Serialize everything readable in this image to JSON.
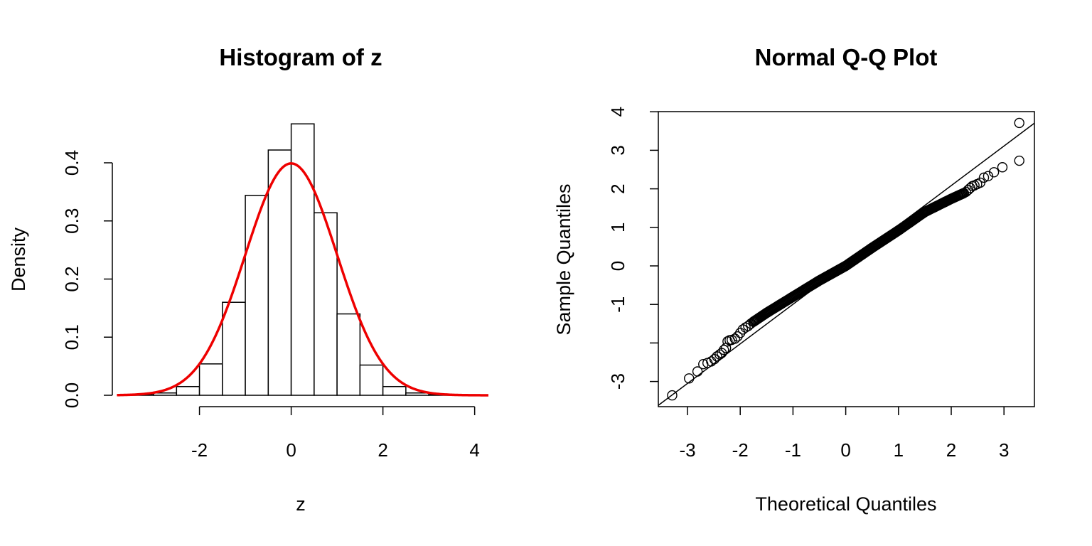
{
  "chart_data": [
    {
      "type": "bar",
      "title": "Histogram of z",
      "xlabel": "z",
      "ylabel": "Density",
      "xlim": [
        -3.9,
        4.3
      ],
      "ylim": [
        0,
        0.4
      ],
      "x_ticks": [
        -2,
        0,
        2,
        4
      ],
      "y_ticks": [
        0.0,
        0.1,
        0.2,
        0.3,
        0.4
      ],
      "x_tick_labels": [
        "-2",
        "0",
        "2",
        "4"
      ],
      "y_tick_labels": [
        "0.0",
        "0.1",
        "0.2",
        "0.3",
        "0.4"
      ],
      "bins": [
        {
          "x0": -3.5,
          "x1": -3.0,
          "density": 0.001
        },
        {
          "x0": -3.0,
          "x1": -2.5,
          "density": 0.004
        },
        {
          "x0": -2.5,
          "x1": -2.0,
          "density": 0.015
        },
        {
          "x0": -2.0,
          "x1": -1.5,
          "density": 0.054
        },
        {
          "x0": -1.5,
          "x1": -1.0,
          "density": 0.16
        },
        {
          "x0": -1.0,
          "x1": -0.5,
          "density": 0.344
        },
        {
          "x0": -0.5,
          "x1": 0.0,
          "density": 0.422
        },
        {
          "x0": 0.0,
          "x1": 0.5,
          "density": 0.467
        },
        {
          "x0": 0.5,
          "x1": 1.0,
          "density": 0.314
        },
        {
          "x0": 1.0,
          "x1": 1.5,
          "density": 0.14
        },
        {
          "x0": 1.5,
          "x1": 2.0,
          "density": 0.052
        },
        {
          "x0": 2.0,
          "x1": 2.5,
          "density": 0.015
        },
        {
          "x0": 2.5,
          "x1": 3.0,
          "density": 0.004
        },
        {
          "x0": 3.0,
          "x1": 3.5,
          "density": 0.001
        },
        {
          "x0": 3.5,
          "x1": 4.0,
          "density": 0.001
        }
      ],
      "overlay": {
        "type": "line",
        "curve": "normal-density",
        "mean": 0,
        "sd": 1,
        "x_range": [
          -3.8,
          4.3
        ],
        "color": "#ee0000"
      }
    },
    {
      "type": "scatter",
      "title": "Normal Q-Q Plot",
      "xlabel": "Theoretical Quantiles",
      "ylabel": "Sample Quantiles",
      "xlim": [
        -3.5,
        3.55
      ],
      "ylim": [
        -3.6,
        4.05
      ],
      "x_ticks": [
        -3,
        -2,
        -1,
        0,
        1,
        2,
        3
      ],
      "y_ticks": [
        -3,
        -2,
        -1,
        0,
        1,
        2,
        3,
        4
      ],
      "x_tick_labels": [
        "-3",
        "-2",
        "-1",
        "0",
        "1",
        "2",
        "3"
      ],
      "y_tick_labels": [
        "-3",
        "",
        "-1",
        "0",
        "1",
        "2",
        "3",
        "4"
      ],
      "reference_line": {
        "slope": 1.027,
        "intercept": 0.03
      },
      "points": [
        [
          -3.29,
          -3.36
        ],
        [
          -2.97,
          -2.92
        ],
        [
          -2.81,
          -2.74
        ],
        [
          -2.7,
          -2.55
        ],
        [
          -2.62,
          -2.52
        ],
        [
          -2.55,
          -2.48
        ],
        [
          -2.49,
          -2.42
        ],
        [
          -2.44,
          -2.35
        ],
        [
          -2.39,
          -2.3
        ],
        [
          -2.35,
          -2.26
        ],
        [
          -2.31,
          -2.18
        ],
        [
          -2.27,
          -2.13
        ],
        [
          -2.24,
          -1.96
        ],
        [
          -2.2,
          -1.93
        ],
        [
          -2.16,
          -1.92
        ],
        [
          -2.1,
          -1.89
        ],
        [
          -2.05,
          -1.83
        ],
        [
          -2.0,
          -1.74
        ],
        [
          -1.95,
          -1.65
        ],
        [
          -1.9,
          -1.6
        ],
        [
          -1.85,
          -1.56
        ],
        [
          -1.8,
          -1.5
        ],
        [
          -1.75,
          -1.45
        ],
        [
          2.24,
          1.89
        ],
        [
          2.28,
          1.92
        ],
        [
          2.32,
          1.97
        ],
        [
          2.36,
          2.02
        ],
        [
          2.4,
          2.07
        ],
        [
          2.44,
          2.09
        ],
        [
          2.49,
          2.12
        ],
        [
          2.55,
          2.16
        ],
        [
          2.62,
          2.29
        ],
        [
          2.7,
          2.33
        ],
        [
          2.81,
          2.43
        ],
        [
          2.97,
          2.56
        ],
        [
          3.29,
          2.73
        ],
        [
          3.29,
          3.71
        ]
      ],
      "dense_band": [
        [
          -1.75,
          -1.45
        ],
        [
          -1.5,
          -1.22
        ],
        [
          -1.0,
          -0.8
        ],
        [
          -0.5,
          -0.38
        ],
        [
          0.0,
          0.0
        ],
        [
          0.5,
          0.47
        ],
        [
          1.0,
          0.92
        ],
        [
          1.5,
          1.4
        ],
        [
          2.0,
          1.74
        ],
        [
          2.24,
          1.89
        ]
      ]
    }
  ]
}
